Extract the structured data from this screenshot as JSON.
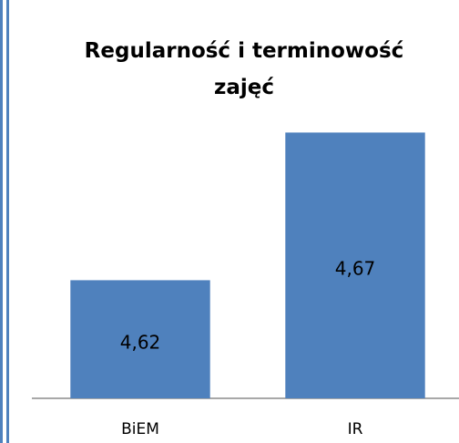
{
  "chart_data": {
    "type": "bar",
    "title": "Regularność i terminowość zajęć",
    "categories": [
      "BiEM",
      "IR"
    ],
    "values": [
      4.62,
      4.67
    ],
    "value_labels": [
      "4,62",
      "4,67"
    ],
    "color": "#4f81bd",
    "ylim": [
      4.58,
      4.68
    ]
  }
}
